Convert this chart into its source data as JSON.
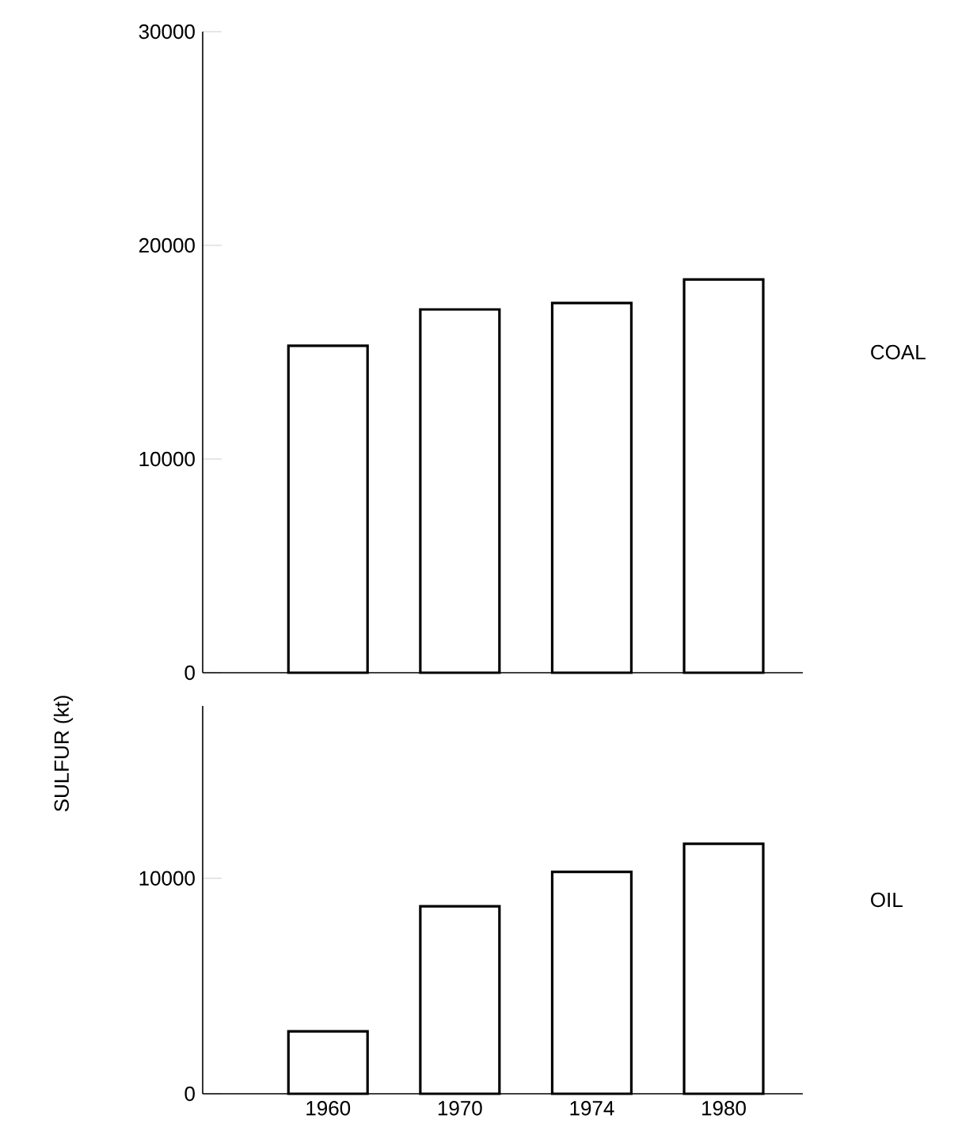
{
  "chart_data": [
    {
      "type": "bar",
      "categories": [
        "1960",
        "1970",
        "1974",
        "1980"
      ],
      "values": [
        15300,
        17000,
        17300,
        18400
      ],
      "color": "#ffffff",
      "ylim": [
        0,
        30000
      ],
      "yticks": [
        0,
        10000,
        20000,
        30000
      ],
      "tick_labels": "y",
      "annotations": [
        "COAL"
      ]
    },
    {
      "type": "bar",
      "ylabel": "SULFUR (kt)",
      "categories": [
        "1960",
        "1970",
        "1974",
        "1980"
      ],
      "values": [
        2900,
        8700,
        10300,
        11600
      ],
      "color": "#ffffff",
      "ylim": [
        0,
        18000
      ],
      "yticks": [
        0,
        10000
      ],
      "annotations": [
        "OIL"
      ]
    }
  ]
}
